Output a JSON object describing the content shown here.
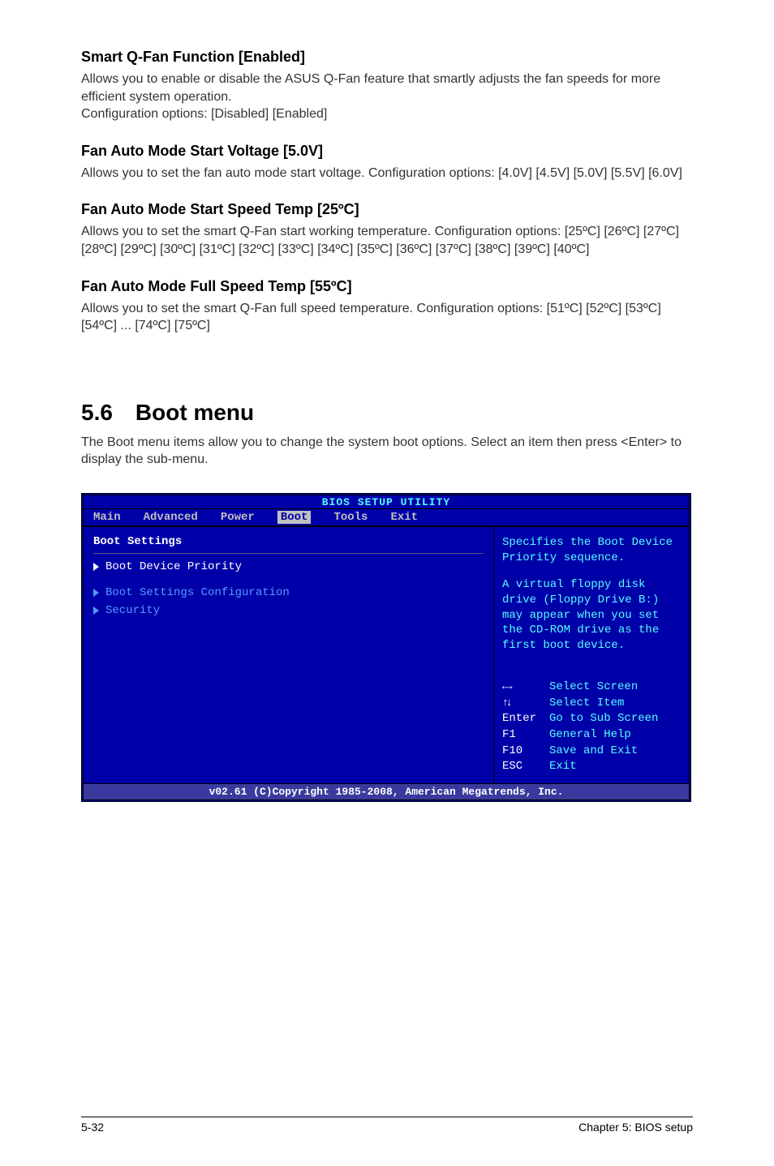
{
  "sections": [
    {
      "title": "Smart Q-Fan Function [Enabled]",
      "body": "Allows you to enable or disable the ASUS Q-Fan feature that smartly adjusts the fan speeds for more efficient system operation.\nConfiguration options: [Disabled] [Enabled]"
    },
    {
      "title": "Fan Auto Mode Start Voltage [5.0V]",
      "body": "Allows you to set the fan auto mode start voltage. Configuration options: [4.0V] [4.5V] [5.0V] [5.5V] [6.0V]"
    },
    {
      "title": "Fan Auto Mode Start Speed Temp [25ºC]",
      "body": "Allows you to set the smart Q-Fan start working temperature. Configuration options: [25ºC] [26ºC] [27ºC] [28ºC] [29ºC] [30ºC] [31ºC] [32ºC] [33ºC] [34ºC] [35ºC] [36ºC] [37ºC] [38ºC] [39ºC] [40ºC]"
    },
    {
      "title": "Fan Auto Mode Full Speed Temp [55ºC]",
      "body": "Allows you to set the smart Q-Fan full speed temperature. Configuration options: [51ºC] [52ºC] [53ºC] [54ºC] ... [74ºC] [75ºC]"
    }
  ],
  "main_heading": "5.6 Boot menu",
  "main_body": "The Boot menu items allow you to change the system boot options. Select an item then press <Enter> to display the sub-menu.",
  "bios": {
    "top_title": "BIOS SETUP UTILITY",
    "menu": [
      "Main",
      "Advanced",
      "Power",
      "Boot",
      "Tools",
      "Exit"
    ],
    "active_menu": "Boot",
    "left_title": "Boot Settings",
    "items": [
      {
        "label": "Boot Device Priority",
        "tri": "white",
        "cls": "white"
      },
      {
        "label": "Boot Settings Configuration",
        "tri": "blue",
        "cls": ""
      },
      {
        "label": "Security",
        "tri": "blue",
        "cls": ""
      }
    ],
    "right_desc": "Specifies the Boot Device Priority sequence.",
    "right_desc2": "A virtual floppy disk drive (Floppy Drive B:) may appear when you set the CD-ROM drive as the first boot device.",
    "keys": [
      {
        "k": "←→",
        "v": "Select Screen",
        "arrcls": "arrows-lr"
      },
      {
        "k": "↑↓",
        "v": "Select Item",
        "arrcls": "arrows-ud"
      },
      {
        "k": "Enter",
        "v": "Go to Sub Screen"
      },
      {
        "k": "F1",
        "v": "General Help"
      },
      {
        "k": "F10",
        "v": "Save and Exit"
      },
      {
        "k": "ESC",
        "v": "Exit"
      }
    ],
    "footer": "v02.61 (C)Copyright 1985-2008, American Megatrends, Inc."
  },
  "page_footer": {
    "left": "5-32",
    "right": "Chapter 5: BIOS setup"
  }
}
